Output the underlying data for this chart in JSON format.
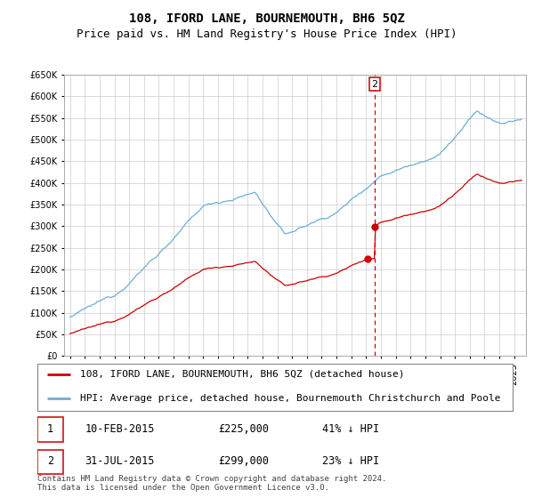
{
  "title": "108, IFORD LANE, BOURNEMOUTH, BH6 5QZ",
  "subtitle": "Price paid vs. HM Land Registry's House Price Index (HPI)",
  "ylim": [
    0,
    650000
  ],
  "yticks": [
    0,
    50000,
    100000,
    150000,
    200000,
    250000,
    300000,
    350000,
    400000,
    450000,
    500000,
    550000,
    600000,
    650000
  ],
  "hpi_color": "#6baed6",
  "price_color": "#cc0000",
  "vline_color": "#cc0000",
  "annotation_box_color": "#cc0000",
  "grid_color": "#cccccc",
  "background_color": "#ffffff",
  "legend_entries": [
    "108, IFORD LANE, BOURNEMOUTH, BH6 5QZ (detached house)",
    "HPI: Average price, detached house, Bournemouth Christchurch and Poole"
  ],
  "transactions": [
    {
      "id": 1,
      "date": "10-FEB-2015",
      "price": "£225,000",
      "pct": "41% ↓ HPI"
    },
    {
      "id": 2,
      "date": "31-JUL-2015",
      "price": "£299,000",
      "pct": "23% ↓ HPI"
    }
  ],
  "footer": "Contains HM Land Registry data © Crown copyright and database right 2024.\nThis data is licensed under the Open Government Licence v3.0.",
  "title_fontsize": 10,
  "subtitle_fontsize": 9,
  "tick_fontsize": 7,
  "legend_fontsize": 8,
  "footer_fontsize": 6.5
}
